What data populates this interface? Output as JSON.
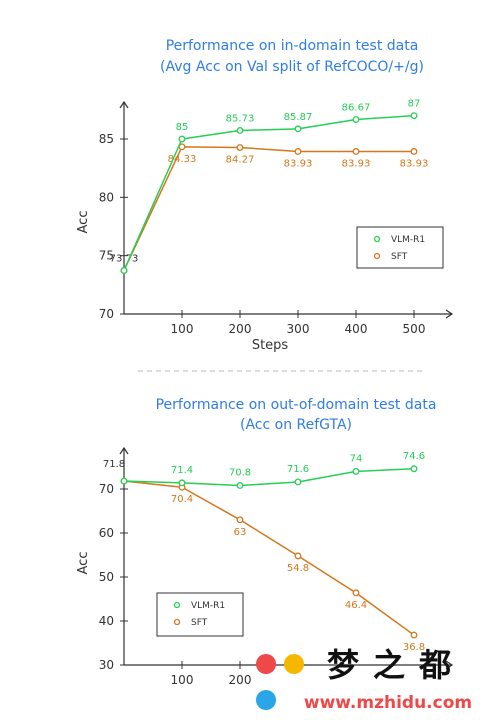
{
  "chart_data": [
    {
      "type": "line",
      "title": "Performance on in-domain test data",
      "subtitle": "(Avg Acc on Val split of RefCOCO/+/g)",
      "xlabel": "Steps",
      "ylabel": "Acc",
      "x": [
        0,
        100,
        200,
        300,
        400,
        500
      ],
      "x_tick_labels": [
        "100",
        "200",
        "300",
        "400",
        "500"
      ],
      "y_tick_labels": [
        "70",
        "75",
        "80",
        "85"
      ],
      "ylim": [
        70,
        87.8
      ],
      "xlim": [
        0,
        530
      ],
      "legend_position": "right-middle",
      "series": [
        {
          "name": "VLM-R1",
          "color": "#26cf55",
          "values": [
            73.73,
            85,
            85.73,
            85.87,
            86.67,
            87
          ],
          "labels": [
            "",
            "85",
            "85.73",
            "85.87",
            "86.67",
            "87"
          ]
        },
        {
          "name": "SFT",
          "color": "#d5771a",
          "values": [
            73.73,
            84.33,
            84.27,
            83.93,
            83.93,
            83.93
          ],
          "labels": [
            "73.73",
            "84.33",
            "84.27",
            "83.93",
            "83.93",
            "83.93"
          ]
        }
      ]
    },
    {
      "type": "line",
      "title": "Performance on out-of-domain test data",
      "subtitle": "(Acc on RefGTA)",
      "xlabel": "",
      "ylabel": "Acc",
      "x": [
        0,
        100,
        200,
        300,
        400,
        500
      ],
      "x_tick_labels": [
        "100",
        "200"
      ],
      "y_tick_labels": [
        "30",
        "40",
        "50",
        "60",
        "70"
      ],
      "ylim": [
        30,
        75.5
      ],
      "xlim": [
        0,
        530
      ],
      "legend_position": "bottom-left",
      "series": [
        {
          "name": "VLM-R1",
          "color": "#26cf55",
          "values": [
            71.8,
            71.4,
            70.8,
            71.6,
            74,
            74.6
          ],
          "labels": [
            "71.8",
            "71.4",
            "70.8",
            "71.6",
            "74",
            "74.6"
          ]
        },
        {
          "name": "SFT",
          "color": "#d5771a",
          "values": [
            71.8,
            70.4,
            63,
            54.8,
            46.4,
            36.8
          ],
          "labels": [
            "",
            "70.4",
            "63",
            "54.8",
            "46.4",
            "36.8"
          ]
        }
      ]
    }
  ],
  "watermark": {
    "chars": "梦之都",
    "url": "www.mzhidu.com",
    "colors": [
      "#ef4848",
      "#f5b800",
      "#2aa5e8"
    ]
  }
}
